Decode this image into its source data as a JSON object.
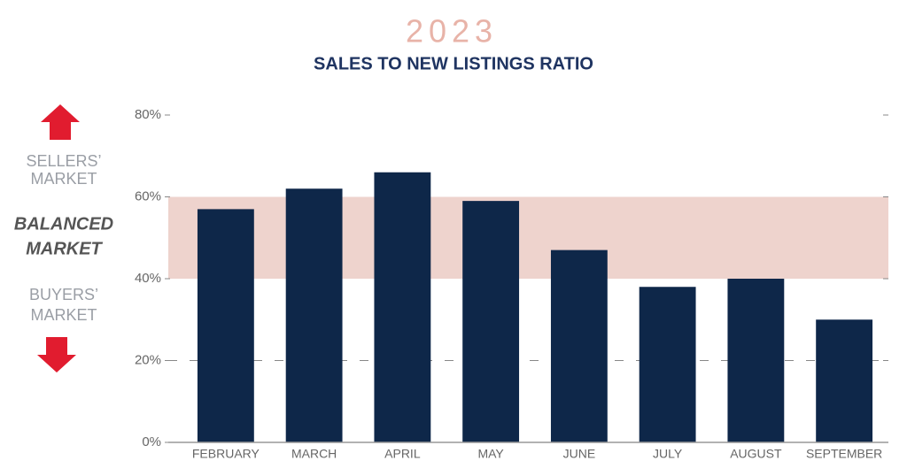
{
  "chart_data": {
    "type": "bar",
    "title": "2023",
    "subtitle": "SALES TO NEW LISTINGS RATIO",
    "categories": [
      "FEBRUARY",
      "MARCH",
      "APRIL",
      "MAY",
      "JUNE",
      "JULY",
      "AUGUST",
      "SEPTEMBER"
    ],
    "values": [
      57,
      62,
      66,
      59,
      47,
      38,
      40,
      30
    ],
    "color": "#0e2749",
    "ylim": [
      0,
      80
    ],
    "yticks": [
      {
        "value": 0,
        "label": "0%"
      },
      {
        "value": 20,
        "label": "20%"
      },
      {
        "value": 40,
        "label": "40%"
      },
      {
        "value": 60,
        "label": "60%"
      },
      {
        "value": 80,
        "label": "80%"
      }
    ],
    "balanced_range": [
      40,
      60
    ],
    "balanced_color": "#eed3cd",
    "reference_line": 20,
    "sellers_label": [
      "SELLERS’",
      "MARKET"
    ],
    "balanced_label": [
      "BALANCED",
      "MARKET"
    ],
    "buyers_label": [
      "BUYERS’",
      "MARKET"
    ]
  }
}
